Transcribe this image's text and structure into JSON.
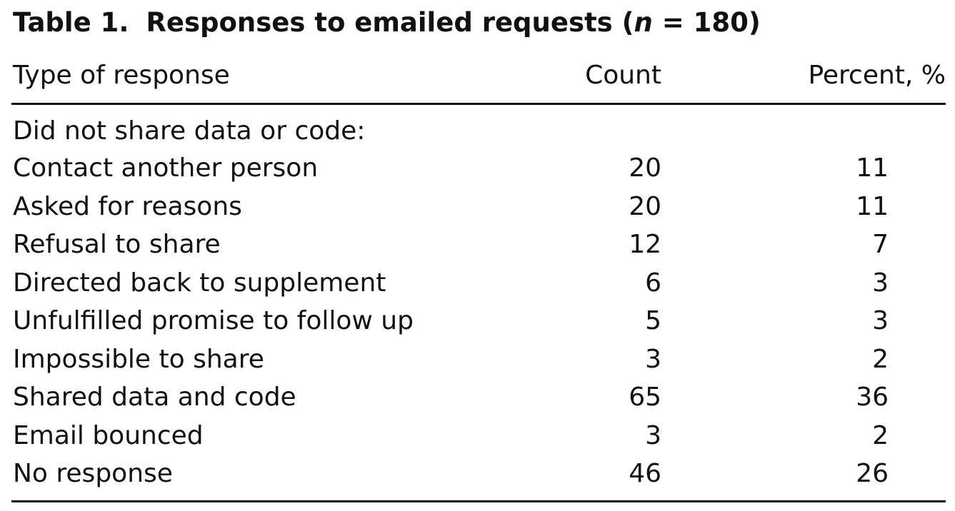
{
  "table": {
    "caption_label": "Table 1.",
    "caption_text_pre": "Responses to emailed requests (",
    "caption_n": "n",
    "caption_text_post": " = 180)",
    "headers": {
      "type": "Type of response",
      "count": "Count",
      "percent": "Percent, %"
    },
    "section_label": "Did not share data or code:",
    "rows": [
      {
        "type": "Contact another person",
        "count": "20",
        "percent": "11"
      },
      {
        "type": "Asked for reasons",
        "count": "20",
        "percent": "11"
      },
      {
        "type": "Refusal to share",
        "count": "12",
        "percent": "7"
      },
      {
        "type": "Directed back to supplement",
        "count": "6",
        "percent": "3"
      },
      {
        "type": "Unfulfilled promise to follow up",
        "count": "5",
        "percent": "3"
      },
      {
        "type": "Impossible to share",
        "count": "3",
        "percent": "2"
      },
      {
        "type": "Shared data and code",
        "count": "65",
        "percent": "36"
      },
      {
        "type": "Email bounced",
        "count": "3",
        "percent": "2"
      },
      {
        "type": "No response",
        "count": "46",
        "percent": "26"
      }
    ]
  }
}
